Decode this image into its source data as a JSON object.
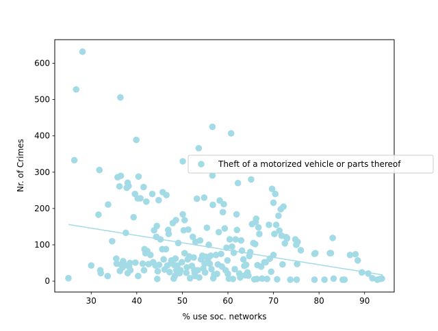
{
  "chart_data": {
    "type": "scatter",
    "title": "",
    "xlabel": "% use soc. networks",
    "ylabel": "Nr. of Crimes",
    "xlim": [
      22.0,
      96.5
    ],
    "ylim": [
      -30,
      665
    ],
    "xticks": [
      30,
      40,
      50,
      60,
      70,
      80,
      90
    ],
    "yticks": [
      0,
      100,
      200,
      300,
      400,
      500,
      600
    ],
    "grid": false,
    "legend_position": "center-right",
    "series": [
      {
        "name": "Theft of a motorized vehicle or parts thereof",
        "color": "#a2dbe6",
        "points": [
          [
            25,
            8
          ],
          [
            26.3,
            333
          ],
          [
            26.7,
            528
          ],
          [
            28.1,
            632
          ],
          [
            30,
            43
          ],
          [
            31.6,
            183
          ],
          [
            31.8,
            306
          ],
          [
            32,
            30
          ],
          [
            32.1,
            22
          ],
          [
            33.6,
            14
          ],
          [
            33.7,
            211
          ],
          [
            34.6,
            110
          ],
          [
            35.5,
            62
          ],
          [
            35.6,
            48
          ],
          [
            35.8,
            286
          ],
          [
            36.2,
            261
          ],
          [
            36.4,
            506
          ],
          [
            36.5,
            290
          ],
          [
            36.3,
            28
          ],
          [
            36.6,
            45
          ],
          [
            36.9,
            38
          ],
          [
            37,
            55
          ],
          [
            37.3,
            45
          ],
          [
            37.6,
            133
          ],
          [
            37.8,
            257
          ],
          [
            38,
            271
          ],
          [
            38,
            22
          ],
          [
            38.2,
            262
          ],
          [
            38.5,
            50
          ],
          [
            38.6,
            30
          ],
          [
            38.3,
            40
          ],
          [
            39.3,
            176
          ],
          [
            39.6,
            240
          ],
          [
            39.7,
            51
          ],
          [
            39.9,
            389
          ],
          [
            40.2,
            228
          ],
          [
            40.3,
            14
          ],
          [
            40.4,
            288
          ],
          [
            40.8,
            228
          ],
          [
            41.3,
            48
          ],
          [
            41.5,
            259
          ],
          [
            41.6,
            30
          ],
          [
            41.7,
            88
          ],
          [
            41.9,
            77
          ],
          [
            42.1,
            219
          ],
          [
            42.3,
            83
          ],
          [
            42.6,
            47
          ],
          [
            43,
            72
          ],
          [
            43.4,
            240
          ],
          [
            43.6,
            52
          ],
          [
            43.8,
            140
          ],
          [
            44.1,
            43
          ],
          [
            44.3,
            122
          ],
          [
            44.4,
            152
          ],
          [
            44.5,
            6
          ],
          [
            44.6,
            27
          ],
          [
            44.8,
            223
          ],
          [
            44.9,
            45
          ],
          [
            45.2,
            115
          ],
          [
            45.6,
            88
          ],
          [
            45.7,
            245
          ],
          [
            45.9,
            60
          ],
          [
            46.1,
            32
          ],
          [
            46.4,
            88
          ],
          [
            46.5,
            237
          ],
          [
            46.7,
            43
          ],
          [
            46.9,
            141
          ],
          [
            47,
            130
          ],
          [
            47.2,
            25
          ],
          [
            47.5,
            49
          ],
          [
            47.6,
            57
          ],
          [
            47.9,
            160
          ],
          [
            48.1,
            7
          ],
          [
            48.3,
            44
          ],
          [
            48.4,
            15
          ],
          [
            48.5,
            62
          ],
          [
            48.6,
            168
          ],
          [
            48.7,
            30
          ],
          [
            48.9,
            43
          ],
          [
            49.1,
            105
          ],
          [
            49.4,
            22
          ],
          [
            49.6,
            30
          ],
          [
            49.9,
            52
          ],
          [
            50.1,
            330
          ],
          [
            50.1,
            184
          ],
          [
            50.3,
            140
          ],
          [
            50.5,
            168
          ],
          [
            50.5,
            77
          ],
          [
            50.9,
            23
          ],
          [
            51,
            38
          ],
          [
            51.2,
            60
          ],
          [
            51.3,
            142
          ],
          [
            51.5,
            68
          ],
          [
            51.7,
            8
          ],
          [
            52.1,
            42
          ],
          [
            52.3,
            122
          ],
          [
            52.5,
            65
          ],
          [
            52.6,
            31
          ],
          [
            52.7,
            22
          ],
          [
            52.8,
            14
          ],
          [
            52.9,
            108
          ],
          [
            53.2,
            227
          ],
          [
            53.4,
            30
          ],
          [
            53.6,
            366
          ],
          [
            53.7,
            10
          ],
          [
            53.9,
            112
          ],
          [
            54.1,
            60
          ],
          [
            54.4,
            70
          ],
          [
            54.6,
            35
          ],
          [
            54.8,
            230
          ],
          [
            54.9,
            48
          ],
          [
            55,
            24
          ],
          [
            55.2,
            67
          ],
          [
            55.4,
            147
          ],
          [
            55.6,
            60
          ],
          [
            55.8,
            100
          ],
          [
            56,
            48
          ],
          [
            56.2,
            70
          ],
          [
            56.4,
            33
          ],
          [
            56.6,
            425
          ],
          [
            56.6,
            291
          ],
          [
            56.7,
            210
          ],
          [
            56.8,
            8
          ],
          [
            57,
            18
          ],
          [
            57.4,
            72
          ],
          [
            57.6,
            20
          ],
          [
            57.8,
            46
          ],
          [
            58,
            135
          ],
          [
            58.2,
            222
          ],
          [
            58.5,
            75
          ],
          [
            58.7,
            40
          ],
          [
            58.9,
            190
          ],
          [
            59.1,
            212
          ],
          [
            59.3,
            145
          ],
          [
            59.5,
            30
          ],
          [
            59.7,
            92
          ],
          [
            59.9,
            57
          ],
          [
            60,
            20
          ],
          [
            60.2,
            7
          ],
          [
            60.4,
            115
          ],
          [
            60.7,
            407
          ],
          [
            60.9,
            95
          ],
          [
            61.1,
            6
          ],
          [
            61.3,
            78
          ],
          [
            61.5,
            33
          ],
          [
            61.7,
            115
          ],
          [
            61.9,
            184
          ],
          [
            62,
            141
          ],
          [
            62.2,
            270
          ],
          [
            62.5,
            21
          ],
          [
            62.7,
            10
          ],
          [
            62.9,
            112
          ],
          [
            63.1,
            84
          ],
          [
            63.4,
            60
          ],
          [
            63.6,
            42
          ],
          [
            63.8,
            16
          ],
          [
            64,
            45
          ],
          [
            64.3,
            24
          ],
          [
            64.5,
            15
          ],
          [
            64.7,
            69
          ],
          [
            64.9,
            80
          ],
          [
            65.1,
            280
          ],
          [
            65.3,
            157
          ],
          [
            65.6,
            105
          ],
          [
            65.8,
            5
          ],
          [
            66,
            102
          ],
          [
            66.1,
            163
          ],
          [
            66.2,
            172
          ],
          [
            66.4,
            6
          ],
          [
            66.5,
            44
          ],
          [
            66.7,
            148
          ],
          [
            66.9,
            130
          ],
          [
            67.3,
            40
          ],
          [
            67.5,
            7
          ],
          [
            68,
            52
          ],
          [
            68.3,
            52
          ],
          [
            68.6,
            6
          ],
          [
            69,
            155
          ],
          [
            69.2,
            62
          ],
          [
            69.5,
            26
          ],
          [
            69.7,
            254
          ],
          [
            70,
            216
          ],
          [
            70,
            72
          ],
          [
            70.2,
            130
          ],
          [
            70.4,
            240
          ],
          [
            70.6,
            155
          ],
          [
            70.8,
            5
          ],
          [
            71.1,
            180
          ],
          [
            71.3,
            139
          ],
          [
            71.6,
            198
          ],
          [
            71.8,
            125
          ],
          [
            72,
            46
          ],
          [
            72.2,
            205
          ],
          [
            72.5,
            104
          ],
          [
            72.8,
            121
          ],
          [
            73,
            118
          ],
          [
            73.7,
            4
          ],
          [
            74.8,
            115
          ],
          [
            75,
            100
          ],
          [
            75.1,
            4
          ],
          [
            75.2,
            47
          ],
          [
            75.3,
            108
          ],
          [
            76,
            85
          ],
          [
            79,
            75
          ],
          [
            79.2,
            77
          ],
          [
            79,
            4
          ],
          [
            81.2,
            4
          ],
          [
            82.4,
            77
          ],
          [
            82.6,
            77
          ],
          [
            83,
            119
          ],
          [
            83.2,
            7
          ],
          [
            85.2,
            4
          ],
          [
            85.6,
            4
          ],
          [
            86.8,
            72
          ],
          [
            88,
            74
          ],
          [
            88.5,
            57
          ],
          [
            89.4,
            24
          ],
          [
            90.8,
            21
          ],
          [
            91.7,
            8
          ],
          [
            92.8,
            4
          ],
          [
            93.4,
            6
          ],
          [
            93.8,
            7
          ]
        ]
      }
    ],
    "trendline": {
      "x": [
        25,
        94
      ],
      "y": [
        156,
        17
      ]
    }
  }
}
